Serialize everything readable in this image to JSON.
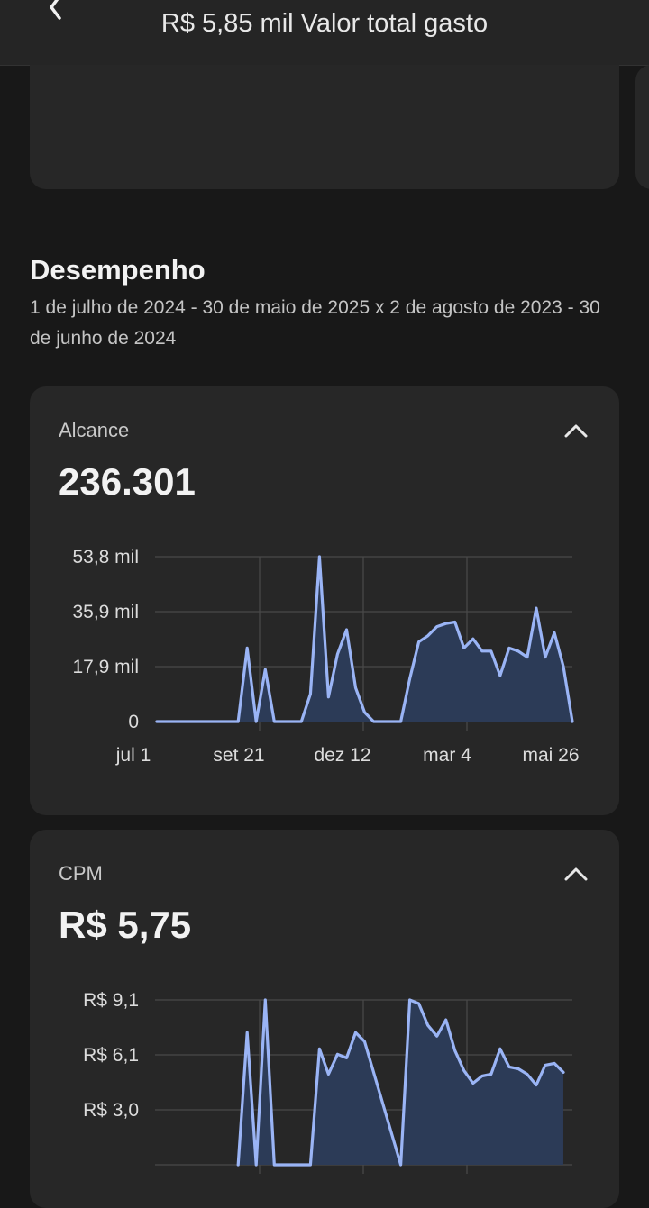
{
  "header": {
    "subtitle": "R$ 5,85 mil Valor total gasto"
  },
  "section": {
    "title": "Desempenho",
    "date_range": "1 de julho de 2024 - 30 de maio de 2025 x 2 de agosto de 2023 - 30 de junho de 2024"
  },
  "colors": {
    "background": "#181818",
    "card": "#272727",
    "line": "#9ab4f5",
    "area": "#2c3b57"
  },
  "icons": {
    "back": "chevron-left-icon",
    "collapse": "chevron-up-icon"
  },
  "metrics": [
    {
      "label": "Alcance",
      "value": "236.301",
      "chart_data": {
        "type": "area",
        "ytick_labels": [
          "53,8 mil",
          "35,9 mil",
          "17,9 mil",
          "0"
        ],
        "xtick_labels": [
          "jul 1",
          "set 21",
          "dez 12",
          "mar 4",
          "mai 26"
        ],
        "y_unit": "mil",
        "ylim": [
          0,
          53.8
        ],
        "grid": true,
        "x_index_range": [
          0,
          46
        ],
        "x": [
          0,
          9,
          10,
          11,
          12,
          13,
          14,
          15,
          16,
          17,
          18,
          19,
          20,
          21,
          22,
          23,
          24,
          25,
          26,
          27,
          28,
          29,
          30,
          31,
          32,
          33,
          34,
          35,
          36,
          37,
          38,
          39,
          40,
          41,
          42,
          43,
          44,
          45,
          46
        ],
        "values": [
          0,
          0,
          24,
          0,
          17,
          0,
          0,
          0,
          0,
          9,
          53.8,
          8,
          22,
          30,
          11,
          3,
          0,
          0,
          0,
          0,
          14,
          26,
          28,
          31,
          32,
          32.5,
          24,
          27,
          23,
          23,
          15,
          24,
          23,
          21,
          37,
          21,
          29,
          18,
          0
        ]
      }
    },
    {
      "label": "CPM",
      "value": "R$ 5,75",
      "chart_data": {
        "type": "area",
        "ytick_labels": [
          "R$ 9,1",
          "R$ 6,1",
          "R$ 3,0"
        ],
        "xtick_labels": [],
        "y_unit": "R$",
        "ylim": [
          0,
          9.1
        ],
        "grid": true,
        "x_index_range": [
          0,
          46
        ],
        "x": [
          9,
          10,
          11,
          12,
          13,
          17,
          18,
          19,
          20,
          21,
          22,
          23,
          27,
          28,
          29,
          30,
          31,
          32,
          33,
          34,
          35,
          36,
          37,
          38,
          39,
          40,
          41,
          42,
          43,
          44,
          45
        ],
        "values": [
          0,
          7.3,
          0,
          9.1,
          0,
          0,
          6.4,
          5,
          6.1,
          5.9,
          7.3,
          6.8,
          0,
          9.1,
          8.9,
          7.7,
          7.1,
          8,
          6.3,
          5.2,
          4.5,
          4.9,
          5,
          6.4,
          5.4,
          5.3,
          5,
          4.4,
          5.5,
          5.6,
          5.1
        ]
      }
    }
  ]
}
